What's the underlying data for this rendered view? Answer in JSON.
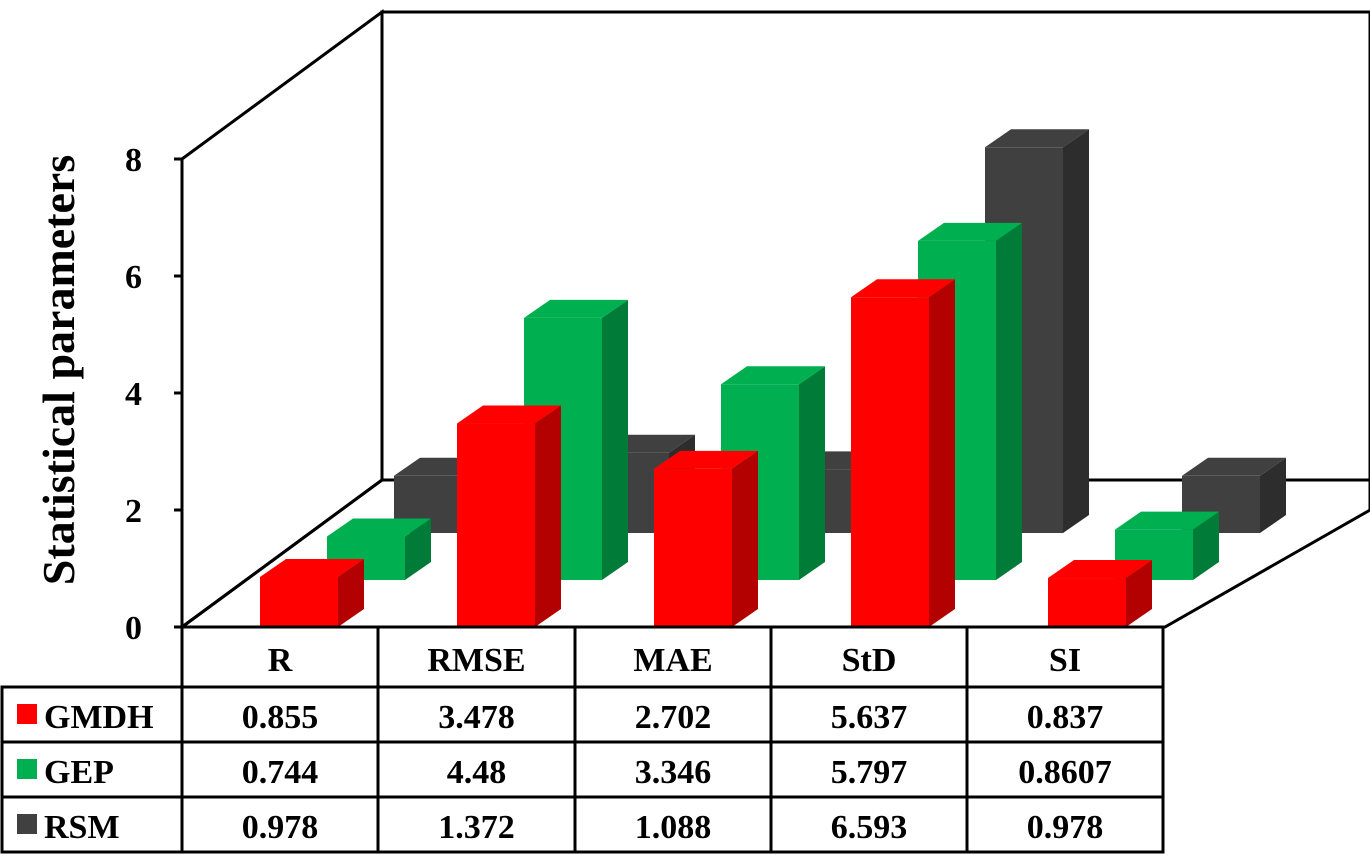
{
  "chart_data": {
    "type": "bar",
    "subtype": "3d-grouped-bar-with-data-table",
    "ylabel": "Statistical parameters",
    "ylim": [
      0,
      8
    ],
    "yticks": [
      0,
      2,
      4,
      6,
      8
    ],
    "grid": false,
    "legend": "in-table-left",
    "categories": [
      "R",
      "RMSE",
      "MAE",
      "StD",
      "SI"
    ],
    "series": [
      {
        "name": "GMDH",
        "color": "#ff0000",
        "values": [
          0.855,
          3.478,
          2.702,
          5.637,
          0.837
        ],
        "labels": [
          "0.855",
          "3.478",
          "2.702",
          "5.637",
          "0.837"
        ]
      },
      {
        "name": "GEP",
        "color": "#00b050",
        "values": [
          0.744,
          4.48,
          3.346,
          5.797,
          0.8607
        ],
        "labels": [
          "0.744",
          "4.48",
          "3.346",
          "5.797",
          "0.8607"
        ]
      },
      {
        "name": "RSM",
        "color": "#404040",
        "values": [
          0.978,
          1.372,
          1.088,
          6.593,
          0.978
        ],
        "labels": [
          "0.978",
          "1.372",
          "1.088",
          "6.593",
          "0.978"
        ]
      }
    ]
  }
}
